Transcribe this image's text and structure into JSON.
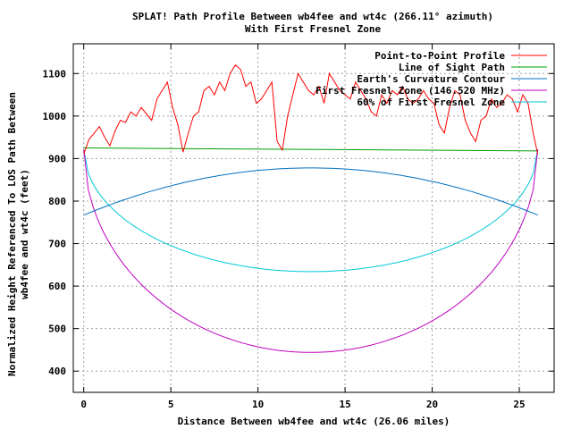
{
  "chart_data": {
    "type": "line",
    "title": "SPLAT! Path Profile Between wb4fee and wt4c (266.11° azimuth)",
    "subtitle": "With First Fresnel Zone",
    "xlabel": "Distance Between wb4fee and wt4c (26.06 miles)",
    "ylabel_line1": "Normalized Height Referenced To LOS Path Between",
    "ylabel_line2": "wb4fee and wt4c (feet)",
    "xlim": [
      -0.6,
      27
    ],
    "ylim": [
      350,
      1170
    ],
    "xticks": [
      0,
      5,
      10,
      15,
      20,
      25
    ],
    "yticks": [
      400,
      500,
      600,
      700,
      800,
      900,
      1000,
      1100
    ],
    "grid": true,
    "legend_position": "top-right",
    "series": [
      {
        "name": "Point-to-Point Profile",
        "color": "#ff0000",
        "x": [
          0,
          0.3,
          0.6,
          0.9,
          1.2,
          1.5,
          1.8,
          2.1,
          2.4,
          2.7,
          3.0,
          3.3,
          3.6,
          3.9,
          4.2,
          4.5,
          4.8,
          5.1,
          5.4,
          5.7,
          6.0,
          6.3,
          6.6,
          6.9,
          7.2,
          7.5,
          7.8,
          8.1,
          8.4,
          8.7,
          9.0,
          9.3,
          9.6,
          9.9,
          10.2,
          10.5,
          10.8,
          11.1,
          11.4,
          11.7,
          12.0,
          12.3,
          12.6,
          12.9,
          13.2,
          13.5,
          13.8,
          14.1,
          14.4,
          14.7,
          15.0,
          15.3,
          15.6,
          15.9,
          16.2,
          16.5,
          16.8,
          17.1,
          17.4,
          17.7,
          18.0,
          18.3,
          18.6,
          18.9,
          19.2,
          19.5,
          19.8,
          20.1,
          20.4,
          20.7,
          21.0,
          21.3,
          21.6,
          21.9,
          22.2,
          22.5,
          22.8,
          23.1,
          23.4,
          23.7,
          24.0,
          24.3,
          24.6,
          24.9,
          25.2,
          25.5,
          25.8,
          26.06
        ],
        "values": [
          910,
          945,
          960,
          975,
          950,
          930,
          965,
          990,
          985,
          1010,
          1000,
          1020,
          1005,
          990,
          1040,
          1060,
          1080,
          1020,
          980,
          915,
          960,
          1000,
          1010,
          1060,
          1070,
          1050,
          1080,
          1060,
          1100,
          1120,
          1110,
          1070,
          1080,
          1030,
          1040,
          1060,
          1080,
          940,
          920,
          1000,
          1050,
          1100,
          1080,
          1060,
          1050,
          1070,
          1030,
          1100,
          1080,
          1060,
          1050,
          1040,
          1080,
          1060,
          1040,
          1010,
          1000,
          1050,
          1030,
          1060,
          1050,
          1070,
          1040,
          1030,
          1040,
          1060,
          1040,
          1030,
          980,
          960,
          1020,
          1060,
          1050,
          990,
          960,
          940,
          990,
          1000,
          1040,
          1020,
          1030,
          1050,
          1040,
          1010,
          1050,
          1030,
          960,
          910
        ]
      },
      {
        "name": "Line of Sight Path",
        "color": "#00a000",
        "x": [
          0,
          26.06
        ],
        "values": [
          925,
          918
        ]
      },
      {
        "name": "Earth's Curvature Contour",
        "color": "#0070c0",
        "function": "earth_curve",
        "ends": 767,
        "center": 878
      },
      {
        "name": "First Fresnel Zone (146.520 MHz)",
        "color": "#c000c0",
        "function": "fresnel",
        "ends": 922,
        "center": 444
      },
      {
        "name": "60% of First Fresnel Zone",
        "color": "#00c8d8",
        "function": "fresnel",
        "ends": 922,
        "center": 634
      }
    ]
  }
}
